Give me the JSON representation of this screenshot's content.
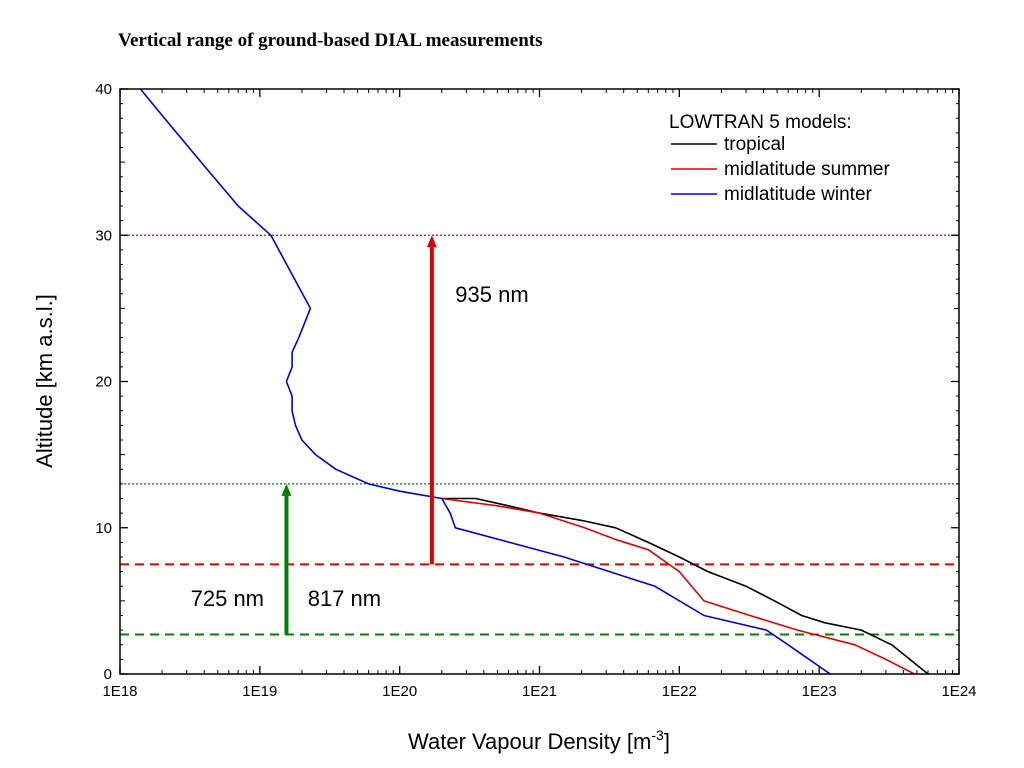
{
  "page_title": "Vertical range of ground-based DIAL measurements",
  "colors": {
    "tropical": "#000000",
    "midlatitude_summer": "#e00000",
    "midlatitude_winter": "#0000dd",
    "red_marker": "#e00000",
    "green_marker": "#008000"
  },
  "chart_data": {
    "type": "line",
    "xlabel_main": "Water Vapour Density [m",
    "xlabel_sup": "-3",
    "xlabel_end": "]",
    "ylabel": "Altitude [km a.s.l.]",
    "x_scale": "log",
    "xlim": [
      1e+18,
      1e+24
    ],
    "ylim": [
      0,
      40
    ],
    "x_ticks": [
      {
        "value": 1e+18,
        "label": "1E18"
      },
      {
        "value": 1e+19,
        "label": "1E19"
      },
      {
        "value": 1e+20,
        "label": "1E20"
      },
      {
        "value": 1e+21,
        "label": "1E21"
      },
      {
        "value": 1e+22,
        "label": "1E22"
      },
      {
        "value": 1e+23,
        "label": "1E23"
      },
      {
        "value": 1e+24,
        "label": "1E24"
      }
    ],
    "y_ticks": [
      {
        "value": 0,
        "label": "0"
      },
      {
        "value": 10,
        "label": "10"
      },
      {
        "value": 20,
        "label": "20"
      },
      {
        "value": 30,
        "label": "30"
      },
      {
        "value": 40,
        "label": "40"
      }
    ],
    "legend": {
      "title": "LOWTRAN 5 models:",
      "position": "top-right"
    },
    "series": [
      {
        "name": "tropical",
        "color": "#000000",
        "x": [
          6e+23,
          3.3e+23,
          2e+23,
          1.1e+23,
          7.5e+22,
          4.8e+22,
          3e+22,
          1.6e+22,
          1e+22,
          6e+21,
          3.5e+21,
          2e+21,
          1e+21,
          6e+20,
          3.5e+20,
          2e+20
        ],
        "y": [
          0,
          2,
          3,
          3.5,
          4,
          5,
          6,
          7,
          8,
          9,
          10,
          10.5,
          11,
          11.5,
          12,
          12
        ]
      },
      {
        "name": "midlatitude summer",
        "color": "#e00000",
        "x": [
          4.8e+23,
          3e+23,
          1.8e+23,
          7e+22,
          3.2e+22,
          1.5e+22,
          1e+22,
          6e+21,
          3.5e+21,
          2.1e+21,
          1e+21,
          5e+20,
          2e+20
        ],
        "y": [
          0,
          1,
          2,
          3,
          4,
          5,
          7,
          8.5,
          9.2,
          10,
          11,
          11.5,
          12
        ]
      },
      {
        "name": "midlatitude winter",
        "color": "#0000dd",
        "x": [
          1.2e+23,
          6e+22,
          4.2e+22,
          1.5e+22,
          6.7e+21,
          1.5e+21,
          2.5e+20,
          2.3e+20,
          2e+20,
          1e+20,
          6e+19,
          3.5e+19,
          2.5e+19,
          2e+19,
          1.8e+19,
          1.7e+19,
          1.7e+19,
          1.55e+19,
          1.7e+19,
          1.7e+19,
          1.9e+19,
          2.3e+19,
          1.2e+19,
          7e+18,
          3.8e+18,
          2.3e+18,
          1.4e+18
        ],
        "y": [
          0,
          2,
          3,
          4,
          6,
          8,
          10,
          11,
          12,
          12.5,
          13,
          14,
          15,
          16,
          17,
          18,
          19,
          20,
          21,
          22,
          23,
          25,
          30,
          32,
          35,
          37.5,
          40
        ]
      }
    ],
    "reference_lines": [
      {
        "y": 30,
        "color": "#e00000",
        "style": "dotted"
      },
      {
        "y": 13,
        "color": "#008000",
        "style": "dotted"
      },
      {
        "y": 7.5,
        "color": "#e00000",
        "style": "dashed"
      },
      {
        "y": 2.7,
        "color": "#008000",
        "style": "dashed"
      }
    ],
    "arrows": [
      {
        "x": 1.7e+20,
        "y_from": 7.5,
        "y_to": 30,
        "color": "#e00000"
      },
      {
        "x": 1.55e+19,
        "y_from": 2.7,
        "y_to": 13,
        "color": "#008000"
      }
    ],
    "annotations": [
      {
        "text": "935 nm",
        "x": 2.5e+20,
        "y": 26
      },
      {
        "text": "725 nm",
        "x": 3.2e+18,
        "y": 5.2
      },
      {
        "text": "817 nm",
        "x": 2.2e+19,
        "y": 5.2
      }
    ]
  }
}
